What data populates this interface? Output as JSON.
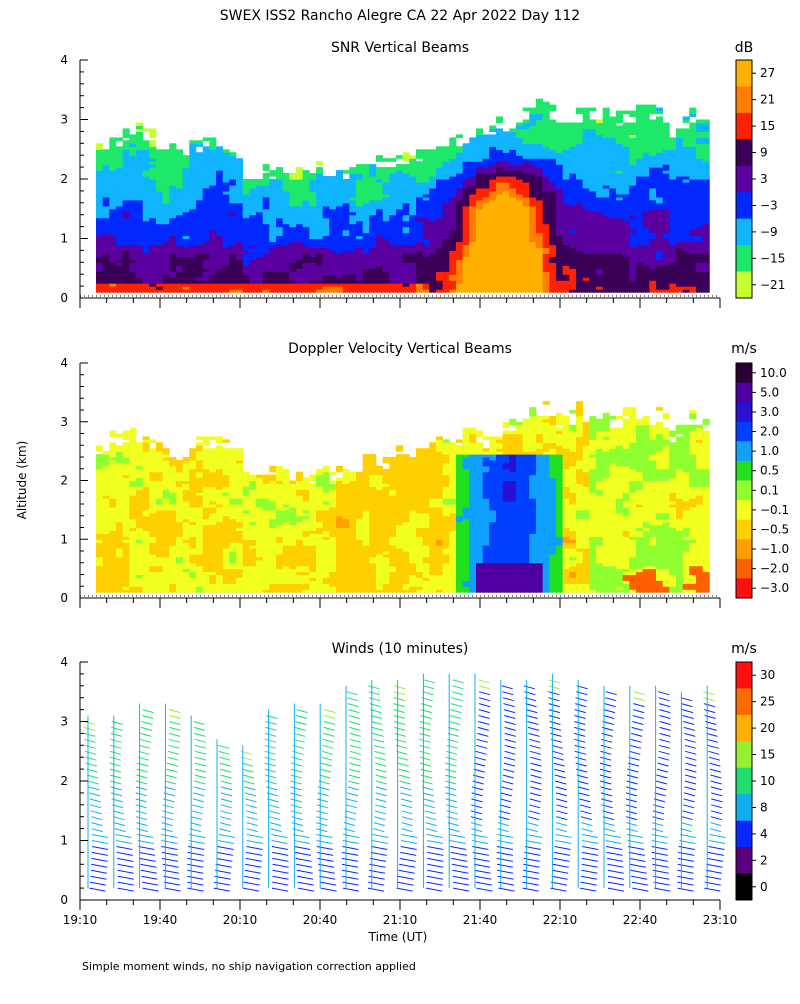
{
  "figure": {
    "title": "SWEX ISS2 Rancho Alegre CA  22 Apr 2022 Day 112",
    "ylabel": "Altitude (km)",
    "xlabel": "Time (UT)",
    "footnote": "Simple moment winds, no ship navigation correction applied"
  },
  "chart_data": [
    {
      "type": "heatmap",
      "title": "SNR Vertical Beams",
      "colorbar_label": "dB",
      "colorbar_ticks": [
        "27",
        "21",
        "15",
        "9",
        "3",
        "−3",
        "−9",
        "−15",
        "−21"
      ],
      "colorbar_colors": [
        "#ffb000",
        "#ff7e00",
        "#ff2200",
        "#3a0058",
        "#5a00a0",
        "#0028ff",
        "#10b4ff",
        "#1ee86a",
        "#c8ff30"
      ],
      "y_ticks": [
        "0",
        "1",
        "2",
        "3",
        "4"
      ],
      "ylim": [
        0,
        4
      ],
      "description_note": "Echo layer mostly below ~2.5 km, deepening to ~3.2 km after 20:50; strongest returns 21:30-22:00."
    },
    {
      "type": "heatmap",
      "title": "Doppler Velocity Vertical Beams",
      "colorbar_label": "m/s",
      "colorbar_ticks": [
        "10.0",
        "5.0",
        "3.0",
        "2.0",
        "1.0",
        "0.5",
        "0.1",
        "−0.1",
        "−0.5",
        "−1.0",
        "−2.0",
        "−3.0"
      ],
      "colorbar_colors": [
        "#2a0030",
        "#4e00a0",
        "#2a10d0",
        "#0040ff",
        "#10a0ff",
        "#20e020",
        "#90ff30",
        "#f0ff20",
        "#ffd000",
        "#ffa000",
        "#ff6000",
        "#ff1010"
      ],
      "y_ticks": [
        "0",
        "1",
        "2",
        "3",
        "4"
      ],
      "ylim": [
        0,
        4
      ]
    },
    {
      "type": "scatter",
      "title": "Winds (10 minutes)",
      "colorbar_label": "m/s",
      "colorbar_ticks": [
        "30",
        "25",
        "20",
        "15",
        "10",
        "8",
        "4",
        "2",
        "0"
      ],
      "colorbar_colors": [
        "#ff1010",
        "#ff6a00",
        "#ffb000",
        "#98ee30",
        "#1ede70",
        "#10b0f0",
        "#0828ff",
        "#5a0080",
        "#000000"
      ],
      "y_ticks": [
        "0",
        "1",
        "2",
        "3",
        "4"
      ],
      "ylim": [
        0,
        4
      ],
      "x_ticks": [
        "19:10",
        "19:40",
        "20:10",
        "20:40",
        "21:10",
        "21:40",
        "22:10",
        "22:40",
        "23:10"
      ],
      "profile_tops_km": [
        3.1,
        3.1,
        3.3,
        3.3,
        3.1,
        2.7,
        2.6,
        3.2,
        3.3,
        3.3,
        3.6,
        3.7,
        3.7,
        3.8,
        3.8,
        3.8,
        3.7,
        3.7,
        3.8,
        3.7,
        3.6,
        3.6,
        3.6,
        3.5,
        3.6
      ]
    }
  ]
}
